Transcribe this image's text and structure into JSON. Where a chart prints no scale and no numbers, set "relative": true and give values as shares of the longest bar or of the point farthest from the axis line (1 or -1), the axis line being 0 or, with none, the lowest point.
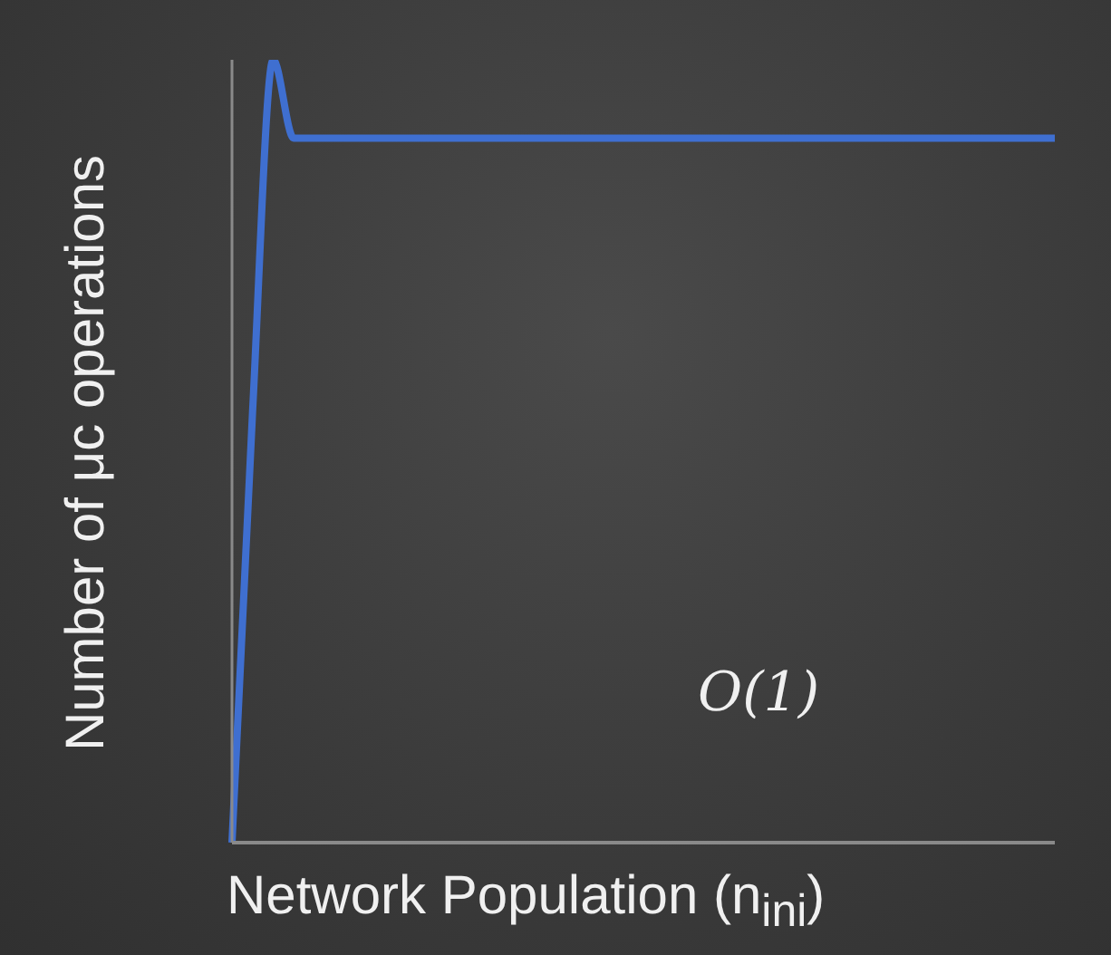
{
  "chart_data": {
    "type": "line",
    "relative": true,
    "xlabel": "Network Population (n$_{ini}$)",
    "ylabel": "Number of μc operations",
    "annotations": [
      "O(1)"
    ],
    "categories": [
      null,
      null,
      null,
      null,
      null,
      null,
      null,
      null,
      null,
      null,
      null,
      null,
      null,
      null,
      null,
      null,
      null,
      null,
      null,
      null,
      null,
      null,
      null,
      null,
      null,
      null,
      null,
      null,
      null,
      null,
      null,
      null,
      null,
      null,
      null,
      null,
      null,
      null,
      null,
      null,
      null
    ],
    "series": [
      {
        "color": "#3f6fd0",
        "values": [
          0,
          0.55,
          1,
          0.9,
          0.9,
          0.9,
          0.9,
          0.9,
          0.9,
          0.9,
          0.9,
          0.9,
          0.9,
          0.9,
          0.9,
          0.9,
          0.9,
          0.9,
          0.9,
          0.9,
          0.9,
          0.9,
          0.9,
          0.9,
          0.9,
          0.9,
          0.9,
          0.9,
          0.9,
          0.9,
          0.9,
          0.9,
          0.9,
          0.9,
          0.9,
          0.9,
          0.9,
          0.9,
          0.9,
          0.9,
          0.9
        ]
      }
    ],
    "grid": false,
    "legend": false,
    "marker": "none",
    "line_style": "solid"
  }
}
